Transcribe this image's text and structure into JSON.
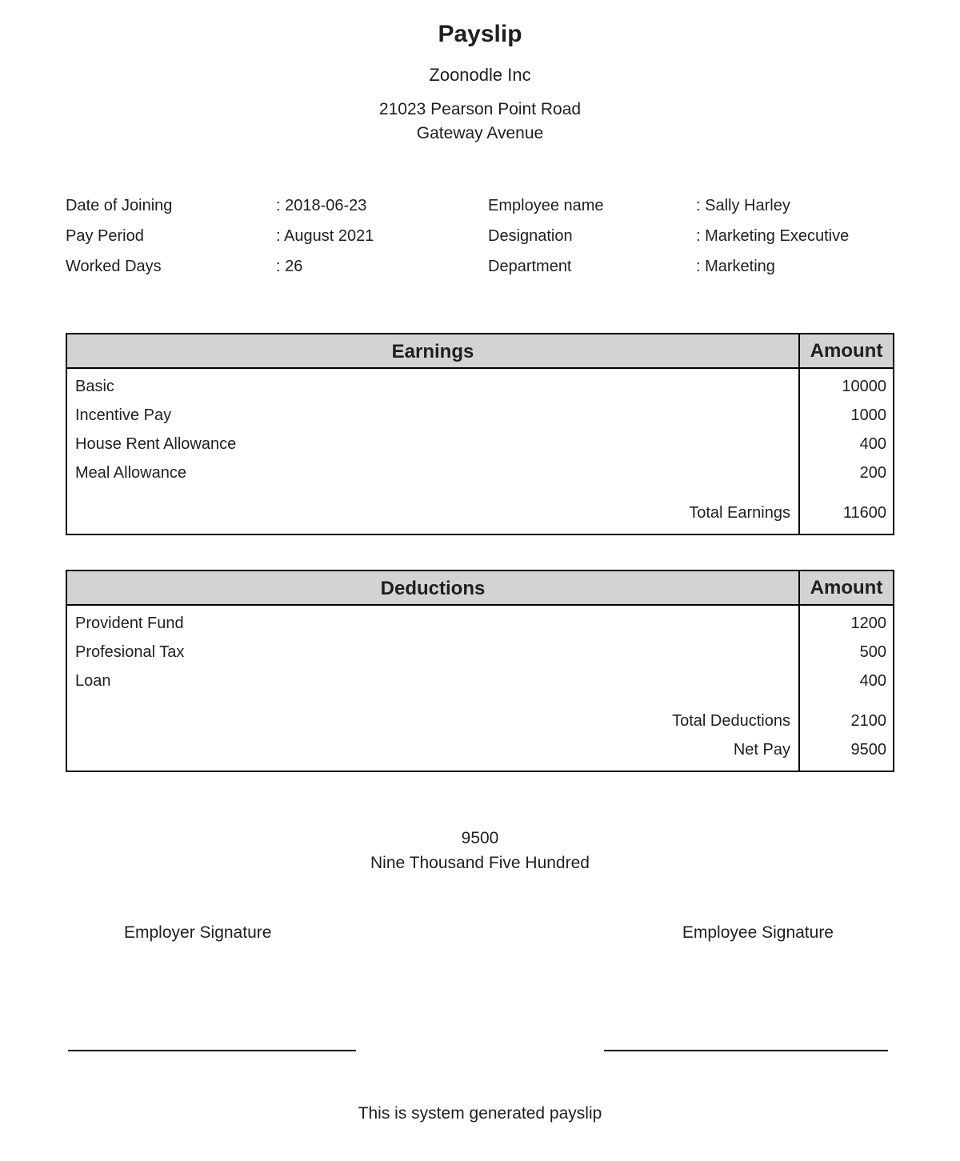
{
  "header": {
    "title": "Payslip",
    "company": "Zoonodle Inc",
    "address_line1": "21023 Pearson Point Road",
    "address_line2": "Gateway Avenue"
  },
  "employee_info": {
    "left": [
      {
        "label": "Date of Joining",
        "value": ": 2018-06-23"
      },
      {
        "label": "Pay Period",
        "value": ": August 2021"
      },
      {
        "label": "Worked Days",
        "value": ": 26"
      }
    ],
    "right": [
      {
        "label": "Employee name",
        "value": ": Sally Harley"
      },
      {
        "label": "Designation",
        "value": ": Marketing Executive"
      },
      {
        "label": "Department",
        "value": ": Marketing"
      }
    ]
  },
  "earnings": {
    "header": "Earnings",
    "amount_header": "Amount",
    "items": [
      {
        "label": "Basic",
        "amount": "10000"
      },
      {
        "label": "Incentive Pay",
        "amount": "1000"
      },
      {
        "label": "House Rent Allowance",
        "amount": "400"
      },
      {
        "label": "Meal Allowance",
        "amount": "200"
      }
    ],
    "total_label": "Total Earnings",
    "total_amount": "11600"
  },
  "deductions": {
    "header": "Deductions",
    "amount_header": "Amount",
    "items": [
      {
        "label": "Provident Fund",
        "amount": "1200"
      },
      {
        "label": "Profesional Tax",
        "amount": "500"
      },
      {
        "label": "Loan",
        "amount": "400"
      }
    ],
    "total_label": "Total Deductions",
    "total_amount": "2100",
    "net_pay_label": "Net Pay",
    "net_pay_amount": "9500"
  },
  "summary": {
    "net_pay_numeric": "9500",
    "net_pay_words": "Nine Thousand Five Hundred"
  },
  "signatures": {
    "employer_label": "Employer Signature",
    "employee_label": "Employee Signature"
  },
  "footer_note": "This is system generated payslip",
  "colors": {
    "table_header_bg": "#d3d3d3",
    "border": "#000000",
    "text": "#1f1f1f",
    "background": "#ffffff"
  }
}
